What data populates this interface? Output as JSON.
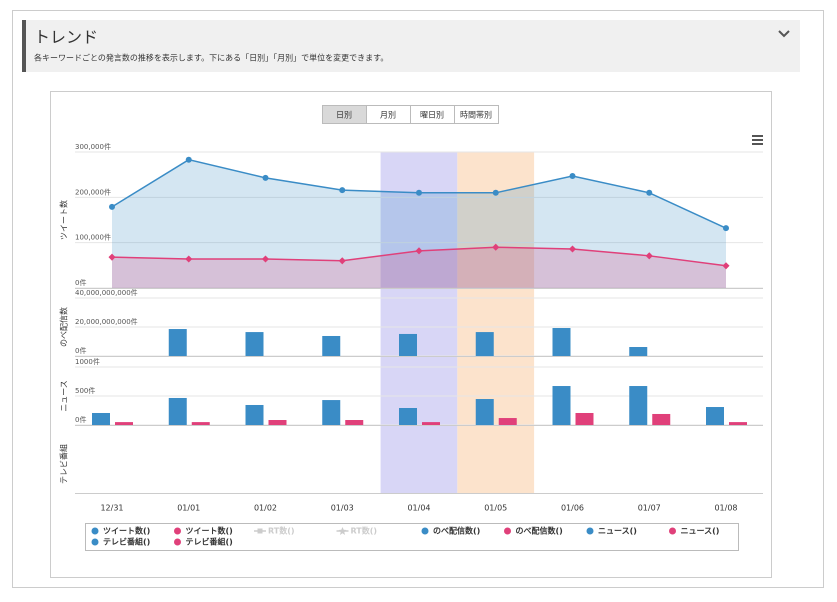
{
  "header": {
    "title": "トレンド",
    "description": "各キーワードごとの発言数の推移を表示します。下にある「日別」「月別」で単位を変更できます。"
  },
  "tabs": [
    {
      "label": "日別",
      "active": true
    },
    {
      "label": "月別",
      "active": false
    },
    {
      "label": "曜日別",
      "active": false
    },
    {
      "label": "時間帯別",
      "active": false
    }
  ],
  "chart_data": {
    "type": "panels",
    "categories": [
      "12/31",
      "01/01",
      "01/02",
      "01/03",
      "01/04",
      "01/05",
      "01/06",
      "01/07",
      "01/08"
    ],
    "bands": [
      {
        "category": "01/04",
        "color": "#d8d6f6"
      },
      {
        "category": "01/05",
        "color": "#fce3cc"
      }
    ],
    "panels": [
      {
        "type": "area",
        "ylabel": "ツイート数",
        "ylim": [
          0,
          300000
        ],
        "yticks": [
          {
            "value": 0,
            "label": "0件"
          },
          {
            "value": 100000,
            "label": "100,000件"
          },
          {
            "value": 200000,
            "label": "200,000件"
          },
          {
            "value": 300000,
            "label": "300,000件"
          }
        ],
        "series": [
          {
            "name": "ツイート数()",
            "color": "#3a8cc6",
            "marker": "circle",
            "values": [
              179000,
              283000,
              243000,
              216000,
              210000,
              210000,
              247000,
              210000,
              132000
            ]
          },
          {
            "name": "ツイート数()",
            "color": "#e0407a",
            "marker": "diamond",
            "values": [
              68000,
              64000,
              64000,
              60000,
              82000,
              90000,
              86000,
              71000,
              49000
            ]
          },
          {
            "name": "RT数()",
            "color": "#cccccc",
            "marker": "square",
            "visible": false,
            "values": [
              null,
              null,
              null,
              null,
              null,
              null,
              null,
              null,
              null
            ]
          },
          {
            "name": "RT数()",
            "color": "#cccccc",
            "marker": "star",
            "visible": false,
            "values": [
              null,
              null,
              null,
              null,
              null,
              null,
              null,
              null,
              null
            ]
          }
        ]
      },
      {
        "type": "bar",
        "ylabel": "のべ配信数",
        "ylim": [
          0,
          40000000000
        ],
        "yticks": [
          {
            "value": 0,
            "label": "0件"
          },
          {
            "value": 20000000000,
            "label": "20,000,000,000件"
          },
          {
            "value": 40000000000,
            "label": "40,000,000,000件"
          }
        ],
        "series": [
          {
            "name": "のべ配信数()",
            "color": "#3a8cc6",
            "values": [
              null,
              18600000000,
              16500000000,
              13800000000,
              15200000000,
              16500000000,
              19300000000,
              6200000000,
              null
            ]
          },
          {
            "name": "のべ配信数()",
            "color": "#e0407a",
            "values": [
              null,
              null,
              null,
              null,
              null,
              null,
              null,
              null,
              null
            ]
          }
        ]
      },
      {
        "type": "bar",
        "ylabel": "ニュース",
        "ylim": [
          0,
          1000
        ],
        "yticks": [
          {
            "value": 0,
            "label": "0件"
          },
          {
            "value": 500,
            "label": "500件"
          },
          {
            "value": 1000,
            "label": "1000件"
          }
        ],
        "series": [
          {
            "name": "ニュース()",
            "color": "#3a8cc6",
            "values": [
              207,
              466,
              345,
              430,
              293,
              448,
              672,
              672,
              310
            ]
          },
          {
            "name": "ニュース()",
            "color": "#e0407a",
            "values": [
              50,
              50,
              86,
              86,
              50,
              120,
              207,
              190,
              50
            ]
          }
        ]
      },
      {
        "type": "bar",
        "ylabel": "テレビ番組",
        "series": [
          {
            "name": "テレビ番組()",
            "color": "#3a8cc6",
            "values": [
              null,
              null,
              null,
              null,
              null,
              null,
              null,
              null,
              null
            ]
          },
          {
            "name": "テレビ番組()",
            "color": "#e0407a",
            "values": [
              null,
              null,
              null,
              null,
              null,
              null,
              null,
              null,
              null
            ]
          }
        ]
      }
    ]
  }
}
